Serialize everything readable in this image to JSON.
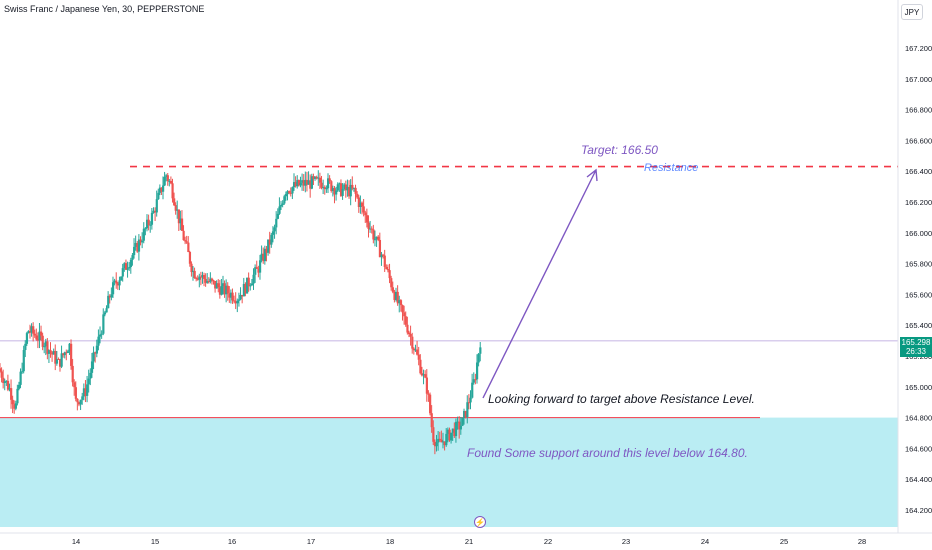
{
  "header": {
    "title": "Swiss Franc / Japanese Yen, 30, PEPPERSTONE",
    "currency": "JPY"
  },
  "price_badge": {
    "price": "165.298",
    "countdown": "26:33"
  },
  "annotations": {
    "target": "Target: 166.50",
    "resistance": "Resistance",
    "looking": "Looking forward to target above Resistance Level.",
    "support": "Found Some support around this level below 164.80."
  },
  "colors": {
    "up": "#26a69a",
    "down": "#ef5350",
    "resistance_line": "#f23645",
    "support_zone": "#b2ebf2",
    "arrow": "#7e57c2",
    "axis_text": "#131722"
  },
  "chart_data": {
    "type": "candlestick",
    "symbol": "CHFJPY",
    "timeframe": "30",
    "ylim": [
      164.1,
      167.32
    ],
    "y_ticks": [
      "167.200",
      "167.000",
      "166.800",
      "166.600",
      "166.400",
      "166.200",
      "166.000",
      "165.800",
      "165.600",
      "165.400",
      "165.200",
      "165.000",
      "164.800",
      "164.600",
      "164.400",
      "164.200"
    ],
    "x_ticks": [
      "14",
      "15",
      "16",
      "17",
      "18",
      "21",
      "22",
      "23",
      "24",
      "25",
      "28"
    ],
    "last_price": 165.298,
    "resistance_level": 166.43,
    "support_level": 164.8,
    "target_level": 166.5,
    "path": [
      {
        "d": 0.0,
        "p": 165.12
      },
      {
        "d": 0.15,
        "p": 164.98
      },
      {
        "d": 0.22,
        "p": 164.86
      },
      {
        "d": 0.38,
        "p": 165.37
      },
      {
        "d": 0.58,
        "p": 165.3
      },
      {
        "d": 0.78,
        "p": 165.15
      },
      {
        "d": 0.92,
        "p": 165.28
      },
      {
        "d": 1.0,
        "p": 164.9
      },
      {
        "d": 1.12,
        "p": 164.96
      },
      {
        "d": 1.45,
        "p": 165.62
      },
      {
        "d": 1.75,
        "p": 165.88
      },
      {
        "d": 1.98,
        "p": 166.12
      },
      {
        "d": 2.15,
        "p": 166.38
      },
      {
        "d": 2.22,
        "p": 166.3
      },
      {
        "d": 2.35,
        "p": 166.02
      },
      {
        "d": 2.5,
        "p": 165.75
      },
      {
        "d": 2.78,
        "p": 165.66
      },
      {
        "d": 3.08,
        "p": 165.58
      },
      {
        "d": 3.32,
        "p": 165.75
      },
      {
        "d": 3.52,
        "p": 165.98
      },
      {
        "d": 3.68,
        "p": 166.28
      },
      {
        "d": 3.92,
        "p": 166.32
      },
      {
        "d": 4.18,
        "p": 166.33
      },
      {
        "d": 4.35,
        "p": 166.28
      },
      {
        "d": 4.55,
        "p": 166.27
      },
      {
        "d": 4.72,
        "p": 166.08
      },
      {
        "d": 4.9,
        "p": 165.86
      },
      {
        "d": 5.1,
        "p": 165.55
      },
      {
        "d": 5.22,
        "p": 165.4
      },
      {
        "d": 5.38,
        "p": 165.15
      },
      {
        "d": 5.48,
        "p": 164.98
      },
      {
        "d": 5.55,
        "p": 164.68
      },
      {
        "d": 5.62,
        "p": 164.62
      },
      {
        "d": 5.82,
        "p": 164.72
      },
      {
        "d": 5.92,
        "p": 164.76
      },
      {
        "d": 6.0,
        "p": 164.9
      },
      {
        "d": 6.08,
        "p": 165.05
      },
      {
        "d": 6.15,
        "p": 165.3
      }
    ]
  }
}
